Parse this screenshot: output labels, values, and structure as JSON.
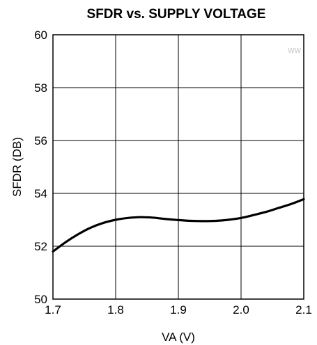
{
  "chart_data": {
    "type": "line",
    "title": "SFDR vs. SUPPLY VOLTAGE",
    "xlabel": "VA (V)",
    "ylabel": "SFDR (DB)",
    "xlim": [
      1.7,
      2.1
    ],
    "ylim": [
      50,
      60
    ],
    "xticks": [
      "1.7",
      "1.8",
      "1.9",
      "2.0",
      "2.1"
    ],
    "yticks": [
      "50",
      "52",
      "54",
      "56",
      "58",
      "60"
    ],
    "grid": true,
    "series": [
      {
        "x": [
          1.7,
          1.72,
          1.74,
          1.76,
          1.78,
          1.8,
          1.82,
          1.84,
          1.86,
          1.88,
          1.9,
          1.92,
          1.94,
          1.96,
          1.98,
          2.0,
          2.02,
          2.04,
          2.06,
          2.08,
          2.1
        ],
        "y": [
          51.8,
          52.15,
          52.45,
          52.7,
          52.88,
          53.0,
          53.07,
          53.1,
          53.08,
          53.03,
          52.99,
          52.96,
          52.95,
          52.96,
          53.0,
          53.07,
          53.18,
          53.3,
          53.45,
          53.6,
          53.78
        ]
      }
    ],
    "color": "#000000"
  },
  "watermark": "ww"
}
